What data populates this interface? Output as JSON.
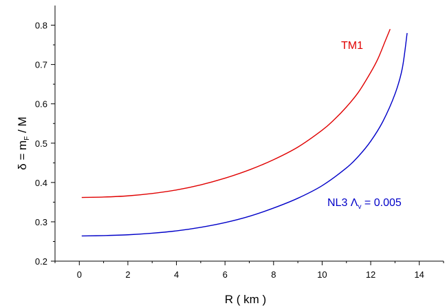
{
  "chart_data": {
    "type": "line",
    "xlabel": "R ( km )",
    "ylabel": {
      "pre": "δ = m",
      "sub": "F",
      "post": " / M"
    },
    "xlim": [
      -1,
      15
    ],
    "ylim": [
      0.2,
      0.85
    ],
    "x_ticks": [
      0,
      2,
      4,
      6,
      8,
      10,
      12,
      14
    ],
    "y_ticks": [
      0.2,
      0.3,
      0.4,
      0.5,
      0.6,
      0.7,
      0.8
    ],
    "x_tick_labels": [
      "0",
      "2",
      "4",
      "6",
      "8",
      "10",
      "12",
      "14"
    ],
    "y_tick_labels": [
      "0.2",
      "0.3",
      "0.4",
      "0.5",
      "0.6",
      "0.7",
      "0.8"
    ],
    "grid": false,
    "series": [
      {
        "name": "TM1",
        "color": "#e00000",
        "x": [
          0.1,
          1,
          2,
          3,
          4,
          5,
          6,
          7,
          8,
          9,
          10,
          10.5,
          11,
          11.5,
          12,
          12.3,
          12.6,
          12.8
        ],
        "y": [
          0.362,
          0.363,
          0.366,
          0.372,
          0.381,
          0.394,
          0.411,
          0.432,
          0.458,
          0.49,
          0.533,
          0.56,
          0.592,
          0.63,
          0.68,
          0.715,
          0.76,
          0.79
        ]
      },
      {
        "name_parts": {
          "pre": "NL3 Λ",
          "sub": "v",
          "post": " = 0.005"
        },
        "color": "#0000c8",
        "x": [
          0.1,
          1,
          2,
          3,
          4,
          5,
          6,
          7,
          8,
          9,
          10,
          11,
          11.5,
          12,
          12.5,
          13,
          13.3,
          13.5
        ],
        "y": [
          0.264,
          0.265,
          0.267,
          0.271,
          0.277,
          0.286,
          0.298,
          0.314,
          0.335,
          0.36,
          0.392,
          0.437,
          0.467,
          0.505,
          0.555,
          0.625,
          0.69,
          0.78
        ]
      }
    ]
  }
}
